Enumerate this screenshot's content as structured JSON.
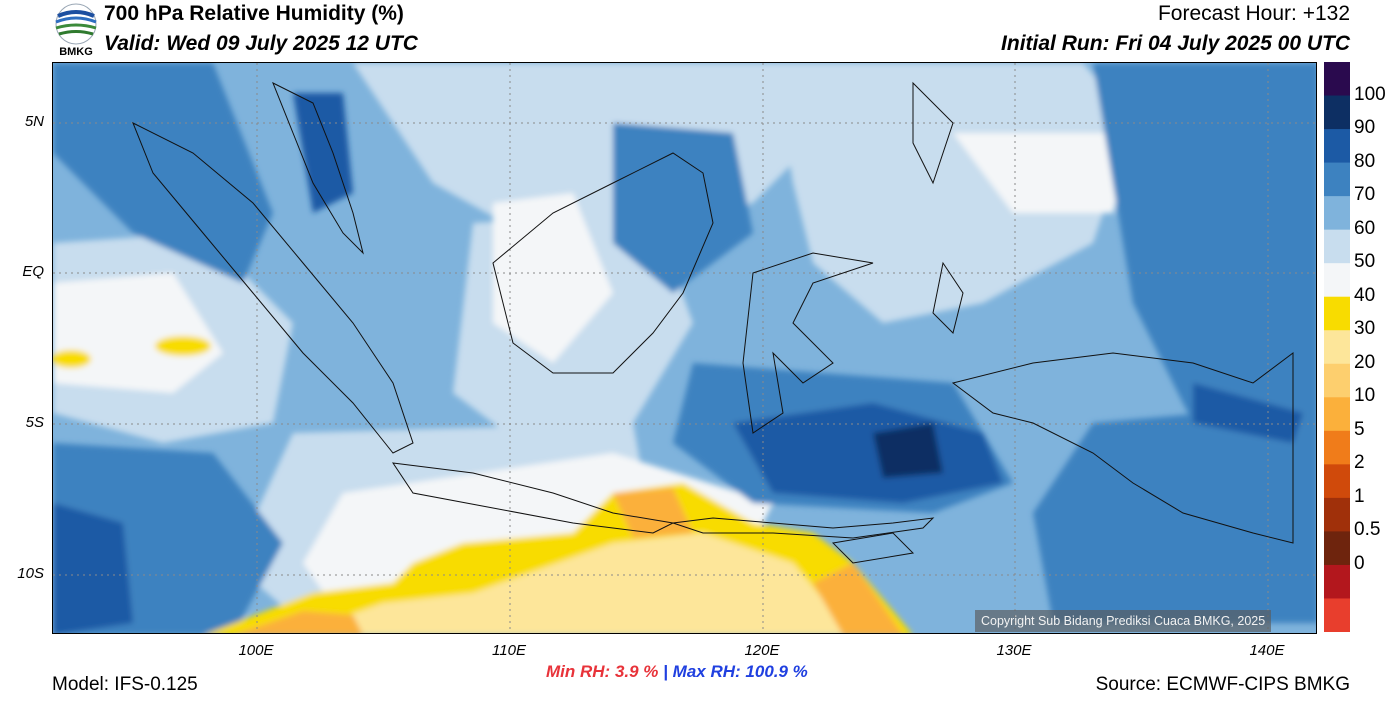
{
  "header": {
    "title": "700 hPa Relative Humidity (%)",
    "valid": "Valid: Wed 09 July 2025 12 UTC",
    "forecast_hour": "Forecast Hour: +132",
    "initial_run": "Initial Run: Fri 04 July 2025 00 UTC",
    "logo_text": "BMKG"
  },
  "map": {
    "lat_labels": [
      "5N",
      "EQ",
      "5S",
      "10S"
    ],
    "lon_labels": [
      "100E",
      "110E",
      "120E",
      "130E",
      "140E"
    ],
    "copyright": "Copyright Sub Bidang Prediksi Cuaca BMKG, 2025"
  },
  "colorbar": {
    "labels": [
      "100",
      "90",
      "80",
      "70",
      "60",
      "50",
      "40",
      "30",
      "20",
      "10",
      "5",
      "2",
      "1",
      "0.5",
      "0"
    ],
    "colors": [
      "#2a0a4e",
      "#0d2f63",
      "#1c5aa5",
      "#3d82c0",
      "#7fb3dc",
      "#c8ddee",
      "#f4f6f8",
      "#f8dc00",
      "#fde69a",
      "#fdcf6e",
      "#fbb03b",
      "#f07c1a",
      "#d04a0b",
      "#a0300a",
      "#6e240d",
      "#b3171d",
      "#e83e2d"
    ]
  },
  "footer": {
    "model": "Model: IFS-0.125",
    "source": "Source: ECMWF-CIPS BMKG",
    "min_label": "Min RH:",
    "min_value": "3.9 %",
    "separator": "|",
    "max_label": "Max RH: 100.9 %"
  },
  "colors": {
    "very_dry": "#f8dc00",
    "dry": "#fde69a",
    "orange": "#fbb03b",
    "moist_light": "#c8ddee",
    "moist": "#7fb3dc",
    "wet": "#3d82c0",
    "very_wet": "#1c5aa5",
    "saturated": "#0d2f63"
  }
}
